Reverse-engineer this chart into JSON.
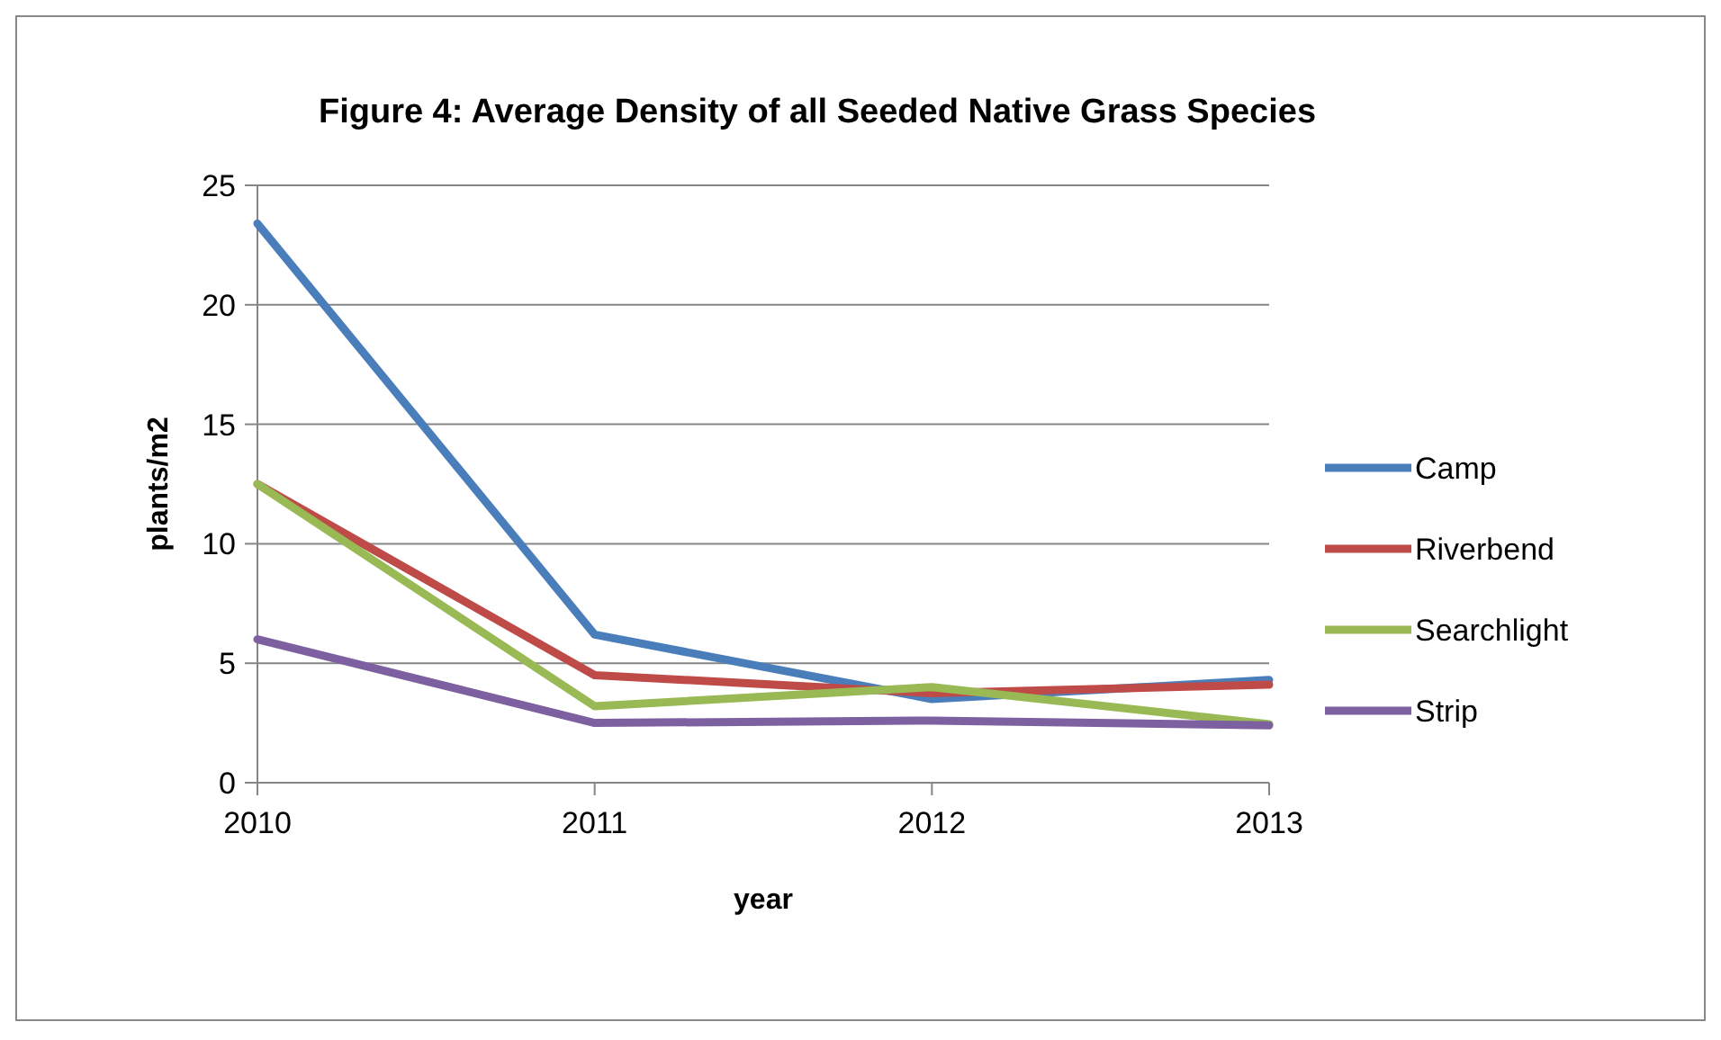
{
  "chart_data": {
    "type": "line",
    "title": "Figure 4: Average Density  of all Seeded Native Grass Species",
    "xlabel": "year",
    "ylabel": "plants/m2",
    "categories": [
      "2010",
      "2011",
      "2012",
      "2013"
    ],
    "series": [
      {
        "name": "Camp",
        "color": "#4a7ebb",
        "values": [
          23.4,
          6.2,
          3.5,
          4.3
        ]
      },
      {
        "name": "Riverbend",
        "color": "#be4b48",
        "values": [
          12.5,
          4.5,
          3.75,
          4.1
        ]
      },
      {
        "name": "Searchlight",
        "color": "#98b954",
        "values": [
          12.5,
          3.2,
          4.0,
          2.45
        ]
      },
      {
        "name": "Strip",
        "color": "#7d60a0",
        "values": [
          6.0,
          2.5,
          2.6,
          2.4
        ]
      }
    ],
    "ylim": [
      0,
      25
    ],
    "yticks": [
      0,
      5,
      10,
      15,
      20,
      25
    ],
    "grid": "y",
    "legend": "right",
    "marker": "none",
    "line_style": "solid"
  }
}
